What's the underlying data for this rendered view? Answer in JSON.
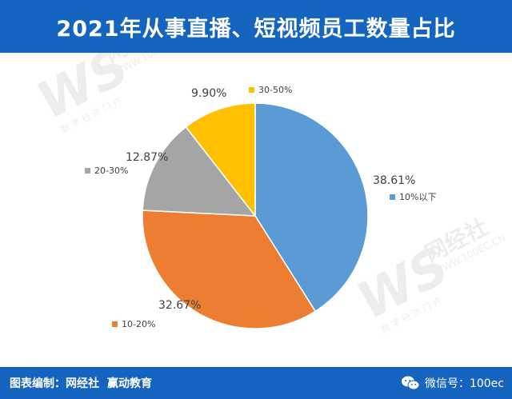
{
  "header": {
    "title": "2021年从事直播、短视频员工数量占比"
  },
  "footer": {
    "credit_label": "图表编制：",
    "credit_org1": "网经社",
    "credit_org2": "赢动教育",
    "wechat": "微信号：100ec"
  },
  "watermark": {
    "letters": "WS",
    "name": "网经社",
    "url": "WWW.100EC.CN",
    "tagline": "数 字 经 济 门 户"
  },
  "colors": {
    "header_bg": "#1565c0",
    "slice_1": "#5b9bd5",
    "slice_2": "#ed7d31",
    "slice_3": "#a5a5a5",
    "slice_4": "#ffc000"
  },
  "chart_data": {
    "type": "pie",
    "title": "2021年从事直播、短视频员工数量占比",
    "categories": [
      "10%以下",
      "10-20%",
      "20-30%",
      "30-50%"
    ],
    "values": [
      38.61,
      32.67,
      12.87,
      9.9
    ],
    "labels": [
      "38.61%",
      "32.67%",
      "12.87%",
      "9.90%"
    ],
    "start_angle_deg": 0,
    "direction": "clockwise",
    "legend": "labels beside slices"
  }
}
